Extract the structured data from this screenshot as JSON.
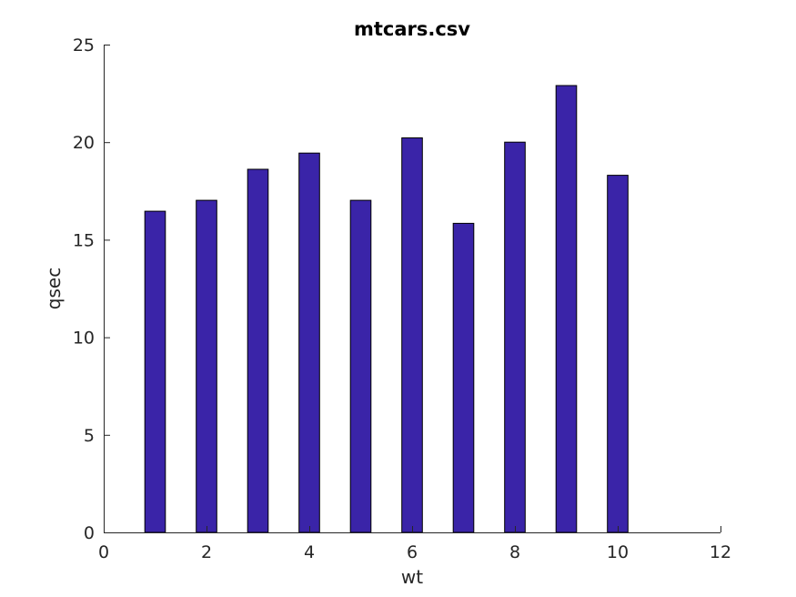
{
  "chart_data": {
    "type": "bar",
    "title": "mtcars.csv",
    "xlabel": "wt",
    "ylabel": "qsec",
    "x": [
      1,
      2,
      3,
      4,
      5,
      6,
      7,
      8,
      9,
      10
    ],
    "values": [
      16.46,
      17.02,
      18.61,
      19.44,
      17.02,
      20.22,
      15.84,
      20.0,
      22.9,
      18.3
    ],
    "xlim": [
      0,
      12
    ],
    "ylim": [
      0,
      25
    ],
    "xticks": [
      0,
      2,
      4,
      6,
      8,
      10,
      12
    ],
    "yticks": [
      0,
      5,
      10,
      15,
      20,
      25
    ],
    "bar_color": "#3a24a8",
    "grid": false,
    "legend": "none"
  }
}
